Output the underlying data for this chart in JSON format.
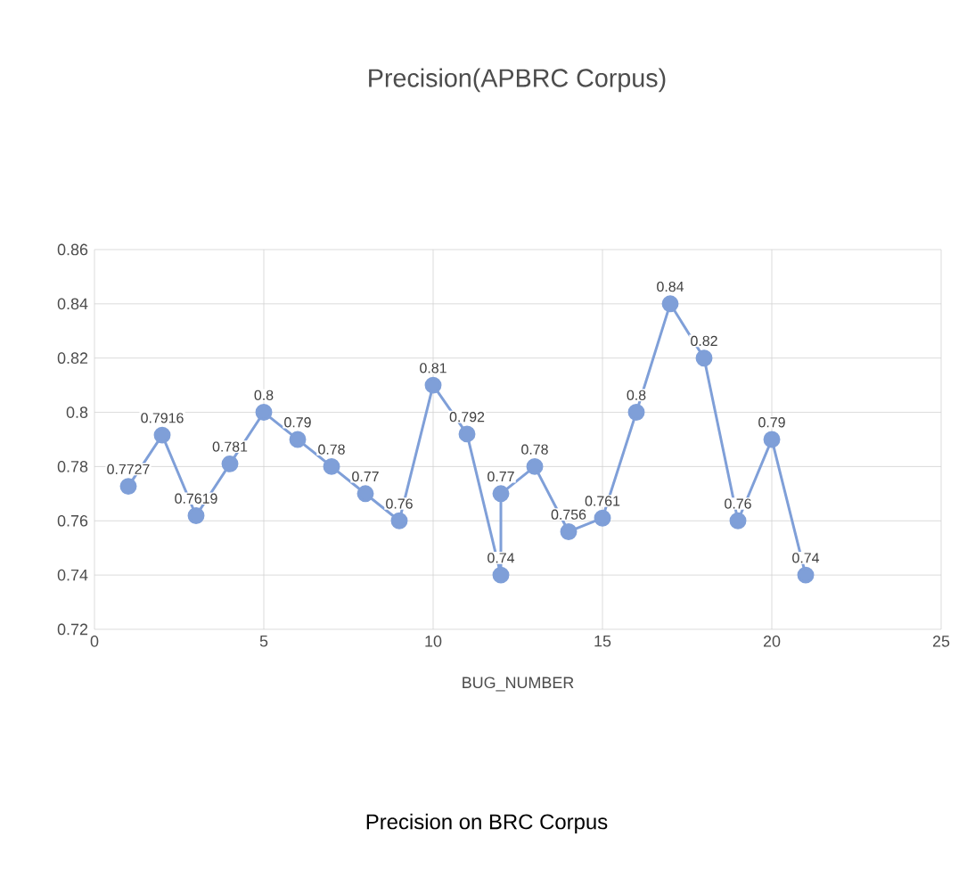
{
  "chart_data": {
    "type": "line",
    "title": "Precision(APBRC Corpus)",
    "xlabel": "BUG_NUMBER",
    "annotations": [
      "Precision on BRC Corpus"
    ],
    "x": [
      1,
      2,
      3,
      4,
      5,
      6,
      7,
      8,
      9,
      10,
      11,
      12,
      12,
      13,
      14,
      15,
      16,
      17,
      18,
      19,
      20,
      21
    ],
    "series": [
      {
        "color": "#7f9fd8",
        "values": [
          0.7727,
          0.7916,
          0.7619,
          0.781,
          0.8,
          0.79,
          0.78,
          0.77,
          0.76,
          0.81,
          0.792,
          0.74,
          0.77,
          0.78,
          0.756,
          0.761,
          0.8,
          0.84,
          0.82,
          0.76,
          0.79,
          0.74
        ],
        "value_labels": [
          "0.7727",
          "0.7916",
          "0.7619",
          "0.781",
          "0.8",
          "0.79",
          "0.78",
          "0.77",
          "0.76",
          "0.81",
          "0.792",
          "0.74",
          "0.77",
          "0.78",
          "0.756",
          "0.761",
          "0.8",
          "0.84",
          "0.82",
          "0.76",
          "0.79",
          "0.74"
        ]
      }
    ],
    "xlim": [
      0,
      25
    ],
    "xticks": [
      0,
      5,
      10,
      15,
      20,
      25
    ],
    "ylim": [
      0.72,
      0.86
    ],
    "yticks": [
      0.72,
      0.74,
      0.76,
      0.78,
      0.8,
      0.82,
      0.84,
      0.86
    ],
    "grid": true,
    "marker": "circle",
    "line_style": "solid"
  }
}
